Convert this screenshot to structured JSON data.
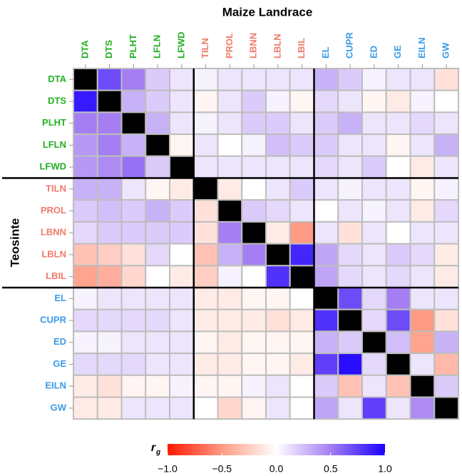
{
  "chart_data": {
    "type": "heatmap",
    "title": "Maize Landrace",
    "y_label": "Teosinte",
    "x_categories": [
      "DTA",
      "DTS",
      "PLHT",
      "LFLN",
      "LFWD",
      "TILN",
      "PROL",
      "LBNN",
      "LBLN",
      "LBIL",
      "EL",
      "CUPR",
      "ED",
      "GE",
      "EILN",
      "GW"
    ],
    "y_categories": [
      "DTA",
      "DTS",
      "PLHT",
      "LFLN",
      "LFWD",
      "TILN",
      "PROL",
      "LBNN",
      "LBLN",
      "LBIL",
      "EL",
      "CUPR",
      "ED",
      "GE",
      "EILN",
      "GW"
    ],
    "label_colors": [
      "#22b022",
      "#22b022",
      "#22b022",
      "#22b022",
      "#22b022",
      "#f07a6a",
      "#f07a6a",
      "#f07a6a",
      "#f07a6a",
      "#f07a6a",
      "#3a9ae8",
      "#3a9ae8",
      "#3a9ae8",
      "#3a9ae8",
      "#3a9ae8",
      "#3a9ae8"
    ],
    "values": [
      [
        null,
        0.7,
        0.5,
        0.2,
        0.1,
        0.05,
        0.1,
        0.1,
        0.1,
        0.1,
        0.3,
        0.2,
        0.05,
        0.1,
        0.1,
        -0.15
      ],
      [
        0.9,
        null,
        0.3,
        0.2,
        0.1,
        -0.05,
        0.1,
        0.2,
        0.05,
        -0.05,
        0.15,
        0.1,
        -0.05,
        -0.1,
        0.05,
        0
      ],
      [
        0.5,
        0.5,
        null,
        0.3,
        0.1,
        0.05,
        0.1,
        0.2,
        0.2,
        0.1,
        0.2,
        0.3,
        0.1,
        0.1,
        0.15,
        0.1
      ],
      [
        0.4,
        0.5,
        0.3,
        null,
        -0.05,
        0.1,
        0,
        0.05,
        0.25,
        0.2,
        0.2,
        0.1,
        0.1,
        -0.05,
        0.1,
        0.3
      ],
      [
        0.4,
        0.45,
        0.55,
        0.2,
        null,
        0.1,
        0.1,
        0.1,
        0.1,
        0.1,
        0.15,
        0.1,
        0.2,
        0,
        -0.1,
        0.1
      ],
      [
        0.3,
        0.3,
        0.1,
        -0.05,
        -0.1,
        null,
        -0.1,
        0,
        0.1,
        0.2,
        0.1,
        0.05,
        0.1,
        0.1,
        -0.05,
        0.05
      ],
      [
        0.2,
        0.25,
        0.2,
        0.3,
        0.2,
        -0.15,
        null,
        0.2,
        0.15,
        0.1,
        0,
        0.1,
        0.05,
        0.1,
        -0.1,
        0.15
      ],
      [
        0.15,
        0.2,
        0.2,
        0.2,
        0.2,
        -0.15,
        0.5,
        null,
        -0.1,
        -0.5,
        0.1,
        -0.15,
        0.1,
        0,
        0.1,
        0.1
      ],
      [
        -0.3,
        -0.25,
        -0.15,
        0.15,
        0,
        -0.3,
        0.3,
        0.5,
        null,
        0.85,
        0.35,
        0.15,
        0.1,
        0.2,
        0.15,
        -0.1
      ],
      [
        -0.45,
        -0.4,
        -0.2,
        0,
        -0.1,
        -0.25,
        0.05,
        0,
        0.8,
        null,
        0.35,
        0.15,
        0.1,
        0.15,
        0.1,
        -0.1
      ],
      [
        0.05,
        0.1,
        0.1,
        0.1,
        0.1,
        -0.1,
        -0.1,
        -0.05,
        -0.05,
        0,
        null,
        0.7,
        0.15,
        0.5,
        0.1,
        0.1
      ],
      [
        0.15,
        0.15,
        0.15,
        0.15,
        0.1,
        -0.1,
        -0.1,
        -0.1,
        -0.15,
        -0.1,
        0.8,
        null,
        0.15,
        0.7,
        -0.5,
        -0.15
      ],
      [
        0.05,
        0.05,
        0.1,
        0.1,
        0.1,
        -0.05,
        -0.1,
        -0.05,
        -0.05,
        -0.05,
        0.3,
        0.2,
        null,
        0.25,
        -0.45,
        0.3
      ],
      [
        0.15,
        0.15,
        0.15,
        0.1,
        0.1,
        -0.1,
        -0.1,
        -0.05,
        -0.05,
        -0.1,
        0.75,
        0.95,
        0.15,
        null,
        0.1,
        -0.35
      ],
      [
        -0.1,
        -0.15,
        -0.05,
        -0.05,
        0.05,
        -0.05,
        -0.05,
        0.05,
        0.1,
        0,
        0.2,
        -0.3,
        0.1,
        -0.3,
        null,
        0.2
      ],
      [
        -0.1,
        -0.1,
        0.1,
        0.1,
        0.1,
        0,
        -0.2,
        -0.05,
        0.1,
        0,
        0.35,
        0.1,
        0.75,
        0.1,
        0.45,
        null
      ]
    ],
    "diagonal_color": "#000000",
    "colorscale": [
      "#ff1a00",
      "#ff9a84",
      "#ffffff",
      "#a47ef2",
      "#1a00ff"
    ],
    "colorbar_label": "r",
    "colorbar_label_sub": "g",
    "clim": [
      -1,
      1
    ],
    "cticks": [
      {
        "value": -1,
        "label": "−1.0"
      },
      {
        "value": -0.5,
        "label": "−0.5"
      },
      {
        "value": 0,
        "label": "0.0"
      },
      {
        "value": 0.5,
        "label": "0.5"
      },
      {
        "value": 1,
        "label": "1.0"
      }
    ]
  }
}
